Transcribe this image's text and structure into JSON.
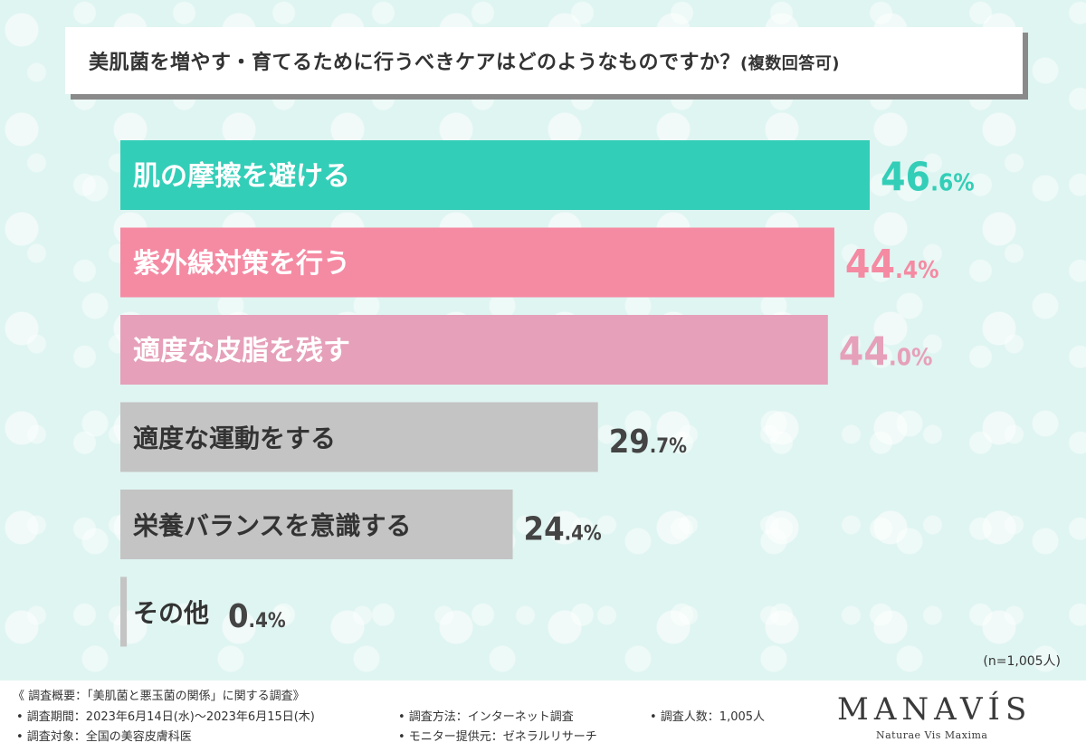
{
  "title": "美肌菌を増やす・育てるために行うべきケアはどのようなものですか？",
  "title_note": "(複数回答可)",
  "n_label": "(n=1,005人)",
  "chart_data": {
    "type": "bar",
    "orientation": "horizontal",
    "title": "美肌菌を増やす・育てるために行うべきケアはどのようなものですか？(複数回答可)",
    "categories": [
      "肌の摩擦を避ける",
      "紫外線対策を行う",
      "適度な皮脂を残す",
      "適度な運動をする",
      "栄養バランスを意識する",
      "その他"
    ],
    "values": [
      46.6,
      44.4,
      44.0,
      29.7,
      24.4,
      0.4
    ],
    "value_labels": [
      {
        "int": "46",
        "dec": ".6%"
      },
      {
        "int": "44",
        "dec": ".4%"
      },
      {
        "int": "44",
        "dec": ".0%"
      },
      {
        "int": "29",
        "dec": ".7%"
      },
      {
        "int": "24",
        "dec": ".4%"
      },
      {
        "int": "0",
        "dec": ".4%"
      }
    ],
    "bar_colors": [
      "#33ceb8",
      "#f58aa3",
      "#e6a0b9",
      "#c4c4c4",
      "#c4c4c4",
      "#c4c4c4"
    ],
    "label_colors": [
      "#ffffff",
      "#ffffff",
      "#ffffff",
      "#333333",
      "#333333",
      "#333333"
    ],
    "value_colors": [
      "#33ceb8",
      "#f58aa3",
      "#e6a0b9",
      "#444444",
      "#444444",
      "#444444"
    ],
    "unit": "%"
  },
  "footer": {
    "summary": "《 調査概要：「美肌菌と悪玉菌の関係」に関する調査》",
    "period": "• 調査期間：2023年6月14日(水)～2023年6月15日(木)",
    "target": "• 調査対象：全国の美容皮膚科医",
    "method": "• 調査方法：インターネット調査",
    "provider": "• モニター提供元：ゼネラルリサーチ",
    "count": "• 調査人数：1,005人",
    "brand": "MANAVÍS",
    "tagline": "Naturae Vis Maxima"
  }
}
